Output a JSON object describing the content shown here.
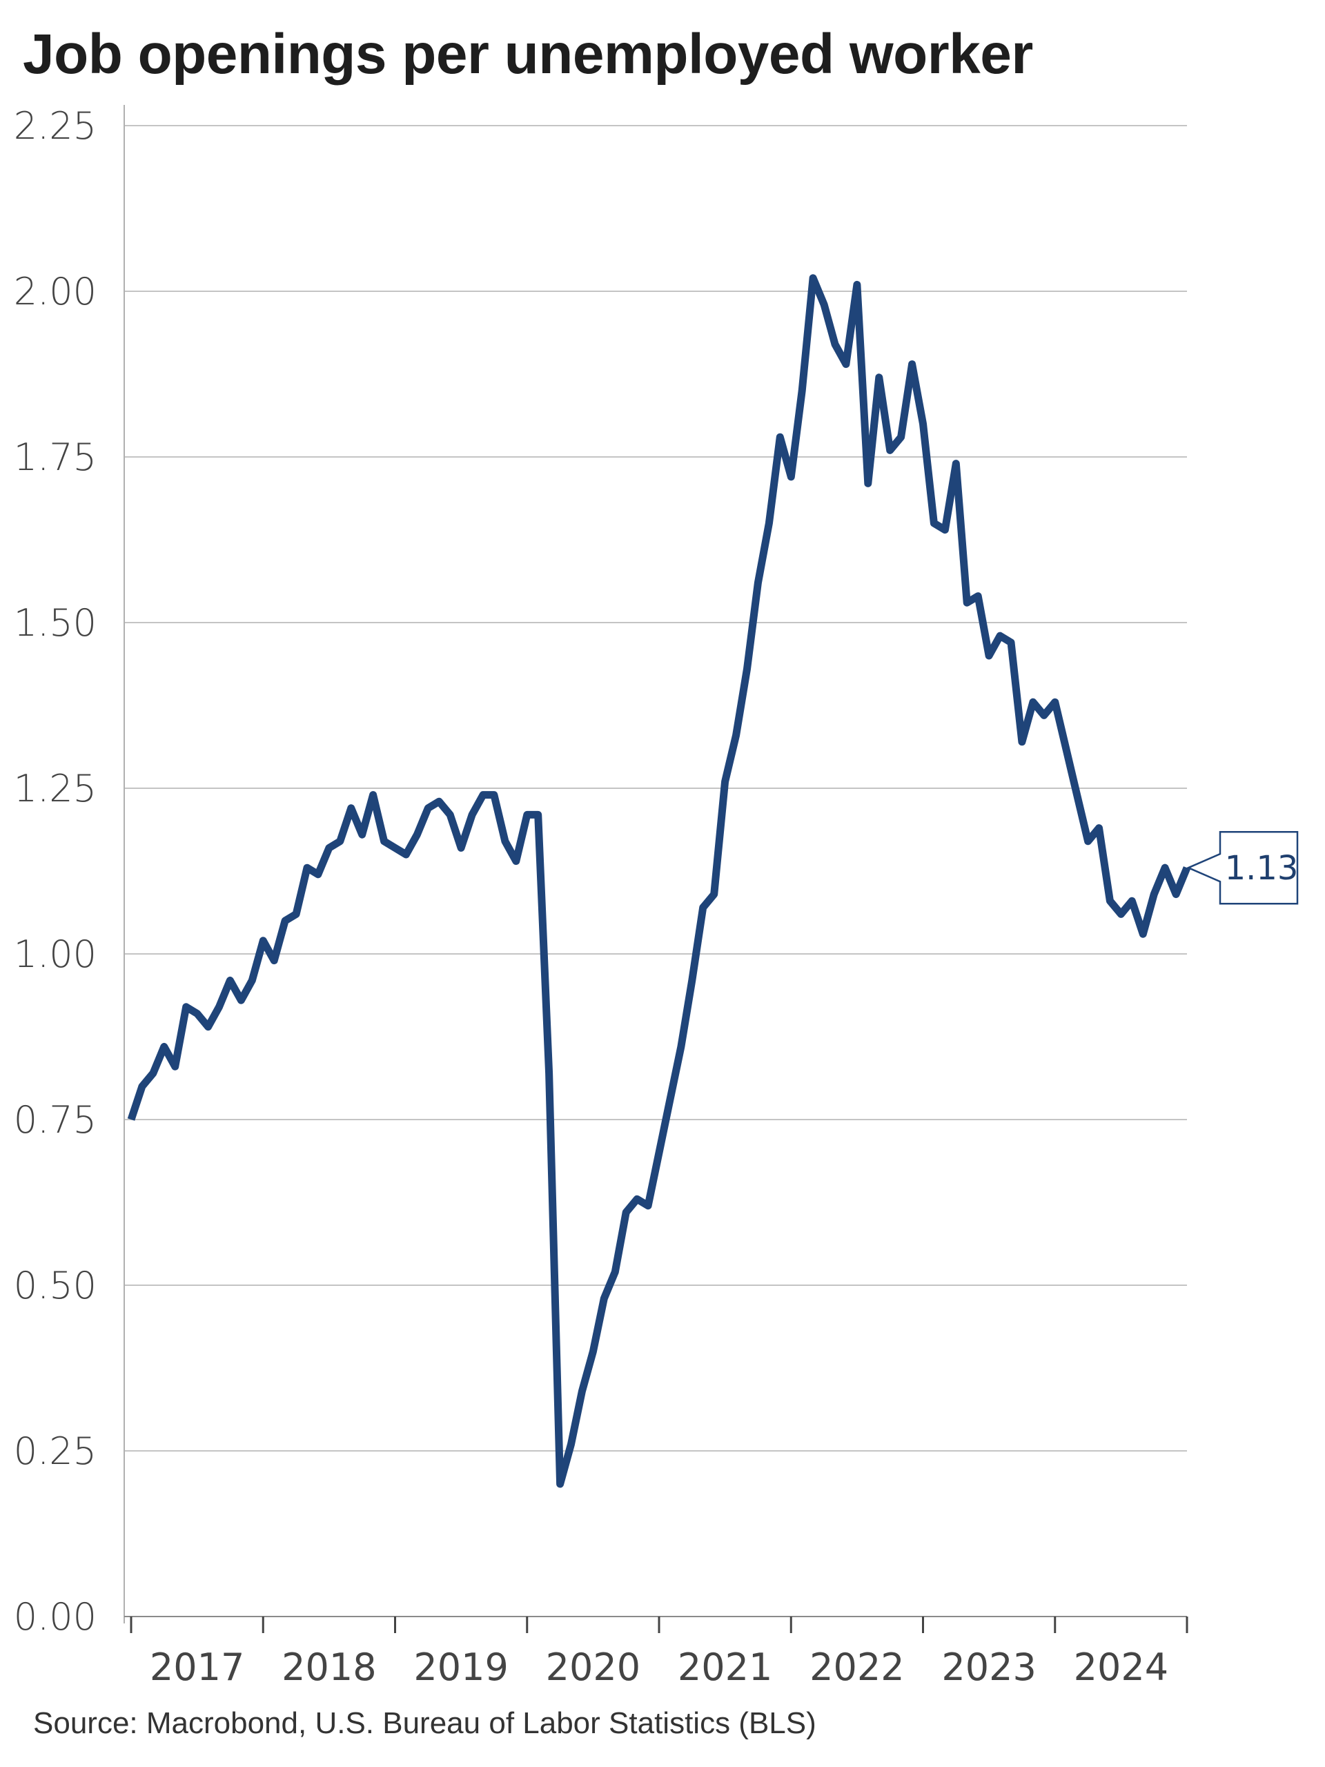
{
  "chart_data": {
    "type": "line",
    "title": "Job openings per unemployed worker",
    "source": "Source: Macrobond, U.S. Bureau of Labor Statistics (BLS)",
    "ylim": [
      0,
      2.25
    ],
    "yticks": [
      "0.00",
      "0.25",
      "0.50",
      "0.75",
      "1.00",
      "1.25",
      "1.50",
      "1.75",
      "2.00",
      "2.25"
    ],
    "xlim": [
      2017,
      2025
    ],
    "xticks": [
      "2017",
      "2018",
      "2019",
      "2020",
      "2021",
      "2022",
      "2023",
      "2024"
    ],
    "grid": true,
    "line_color": "#1f4479",
    "last_value_label": "1.13",
    "series": [
      {
        "x": [
          "2017-01",
          "2017-02",
          "2017-03",
          "2017-04",
          "2017-05",
          "2017-06",
          "2017-07",
          "2017-08",
          "2017-09",
          "2017-10",
          "2017-11",
          "2017-12",
          "2018-01",
          "2018-02",
          "2018-03",
          "2018-04",
          "2018-05",
          "2018-06",
          "2018-07",
          "2018-08",
          "2018-09",
          "2018-10",
          "2018-11",
          "2018-12",
          "2019-01",
          "2019-02",
          "2019-03",
          "2019-04",
          "2019-05",
          "2019-06",
          "2019-07",
          "2019-08",
          "2019-09",
          "2019-10",
          "2019-11",
          "2019-12",
          "2020-01",
          "2020-02",
          "2020-03",
          "2020-04",
          "2020-05",
          "2020-06",
          "2020-07",
          "2020-08",
          "2020-09",
          "2020-10",
          "2020-11",
          "2020-12",
          "2021-01",
          "2021-02",
          "2021-03",
          "2021-04",
          "2021-05",
          "2021-06",
          "2021-07",
          "2021-08",
          "2021-09",
          "2021-10",
          "2021-11",
          "2021-12",
          "2022-01",
          "2022-02",
          "2022-03",
          "2022-04",
          "2022-05",
          "2022-06",
          "2022-07",
          "2022-08",
          "2022-09",
          "2022-10",
          "2022-11",
          "2022-12",
          "2023-01",
          "2023-02",
          "2023-03",
          "2023-04",
          "2023-05",
          "2023-06",
          "2023-07",
          "2023-08",
          "2023-09",
          "2023-10",
          "2023-11",
          "2023-12",
          "2024-01",
          "2024-02",
          "2024-03",
          "2024-04",
          "2024-05",
          "2024-06",
          "2024-07",
          "2024-08",
          "2024-09",
          "2024-10",
          "2024-11",
          "2024-12",
          "2025-01"
        ],
        "values": [
          0.75,
          0.8,
          0.82,
          0.86,
          0.83,
          0.92,
          0.91,
          0.89,
          0.92,
          0.96,
          0.93,
          0.96,
          1.02,
          0.99,
          1.05,
          1.06,
          1.13,
          1.12,
          1.16,
          1.17,
          1.22,
          1.18,
          1.24,
          1.17,
          1.16,
          1.15,
          1.18,
          1.22,
          1.23,
          1.21,
          1.16,
          1.21,
          1.24,
          1.24,
          1.17,
          1.14,
          1.21,
          1.21,
          0.82,
          0.2,
          0.26,
          0.34,
          0.4,
          0.48,
          0.52,
          0.61,
          0.63,
          0.62,
          0.7,
          0.78,
          0.86,
          0.96,
          1.07,
          1.09,
          1.26,
          1.33,
          1.43,
          1.56,
          1.65,
          1.78,
          1.72,
          1.85,
          2.02,
          1.98,
          1.92,
          1.89,
          2.01,
          1.71,
          1.87,
          1.76,
          1.78,
          1.89,
          1.8,
          1.65,
          1.64,
          1.74,
          1.53,
          1.54,
          1.45,
          1.48,
          1.47,
          1.32,
          1.38,
          1.36,
          1.38,
          1.31,
          1.24,
          1.17,
          1.19,
          1.08,
          1.06,
          1.08,
          1.03,
          1.09,
          1.13,
          1.09,
          1.13
        ]
      }
    ]
  }
}
